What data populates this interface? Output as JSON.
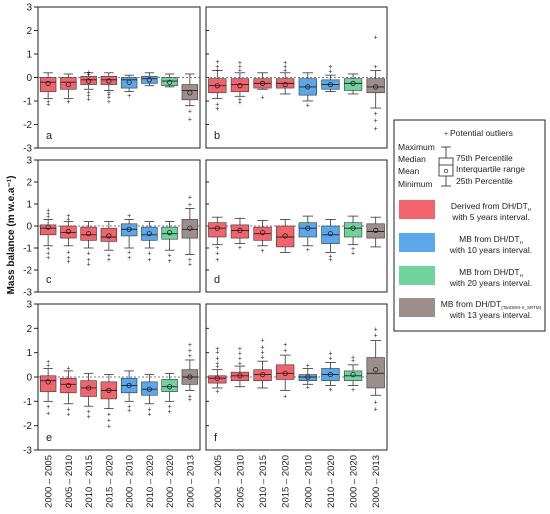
{
  "chart_data": {
    "type": "boxplot",
    "ylabel": "Mass balance (m w.e.a⁻¹)",
    "ylim": [
      -3,
      3
    ],
    "yticks": [
      -3,
      -2,
      -1,
      0,
      1,
      2,
      3
    ],
    "categories": [
      "2000 – 2005",
      "2005 – 2010",
      "2010 – 2015",
      "2015 – 2020",
      "2000 – 2010",
      "2010 – 2020",
      "2000 – 2020",
      "2000 – 2013"
    ],
    "category_group": [
      "5yr",
      "5yr",
      "5yr",
      "5yr",
      "10yr",
      "10yr",
      "20yr",
      "13yr"
    ],
    "colors": {
      "5yr": "#f2636b",
      "10yr": "#5aa7ec",
      "20yr": "#6fd39c",
      "13yr": "#9c8f8b"
    },
    "panels": [
      {
        "label": "a",
        "boxes": [
          {
            "min": -0.9,
            "q1": -0.6,
            "median": -0.2,
            "mean": -0.25,
            "q3": 0.0,
            "max": 0.2,
            "outliers": [
              -1.0,
              -1.1
            ]
          },
          {
            "min": -0.9,
            "q1": -0.5,
            "median": -0.2,
            "mean": -0.3,
            "q3": 0.0,
            "max": 0.15,
            "outliers": [
              -1.0
            ]
          },
          {
            "min": -0.5,
            "q1": -0.3,
            "median": -0.1,
            "mean": -0.15,
            "q3": 0.05,
            "max": 0.2,
            "outliers": [
              -0.6,
              -0.75,
              -0.9,
              0.15,
              0.25
            ]
          },
          {
            "min": -0.55,
            "q1": -0.3,
            "median": -0.1,
            "mean": -0.15,
            "q3": 0.05,
            "max": 0.2,
            "outliers": [
              -0.6,
              -0.7,
              -0.8,
              -1.0
            ]
          },
          {
            "min": -0.6,
            "q1": -0.45,
            "median": -0.1,
            "mean": -0.2,
            "q3": 0.0,
            "max": 0.1,
            "outliers": [
              -0.75
            ]
          },
          {
            "min": -0.35,
            "q1": -0.25,
            "median": -0.05,
            "mean": -0.1,
            "q3": 0.05,
            "max": 0.2,
            "outliers": []
          },
          {
            "min": -0.4,
            "q1": -0.35,
            "median": -0.15,
            "mean": -0.2,
            "q3": 0.0,
            "max": 0.15,
            "outliers": []
          },
          {
            "min": -1.2,
            "q1": -0.95,
            "median": -0.55,
            "mean": -0.65,
            "q3": -0.3,
            "max": 0.15,
            "outliers": [
              -1.4,
              -1.75
            ]
          }
        ]
      },
      {
        "label": "b",
        "boxes": [
          {
            "min": -0.9,
            "q1": -0.65,
            "median": -0.35,
            "mean": -0.35,
            "q3": -0.05,
            "max": 0.3,
            "outliers": [
              -1.1,
              -1.3,
              0.35,
              0.5,
              0.7
            ]
          },
          {
            "min": -0.8,
            "q1": -0.6,
            "median": -0.3,
            "mean": -0.35,
            "q3": -0.05,
            "max": 0.2,
            "outliers": [
              -0.9,
              -1.05,
              0.35,
              0.5,
              0.65
            ]
          },
          {
            "min": -0.5,
            "q1": -0.45,
            "median": -0.25,
            "mean": -0.25,
            "q3": -0.05,
            "max": 0.2,
            "outliers": [
              -0.8
            ]
          },
          {
            "min": -0.7,
            "q1": -0.45,
            "median": -0.25,
            "mean": -0.3,
            "q3": -0.05,
            "max": 0.2,
            "outliers": [
              0.35,
              0.5,
              0.65
            ]
          },
          {
            "min": -1.0,
            "q1": -0.75,
            "median": -0.4,
            "mean": -0.4,
            "q3": -0.05,
            "max": 0.2,
            "outliers": [
              -1.15
            ]
          },
          {
            "min": -0.6,
            "q1": -0.5,
            "median": -0.3,
            "mean": -0.3,
            "q3": -0.1,
            "max": 0.1,
            "outliers": [
              0.3,
              0.5
            ]
          },
          {
            "min": -0.7,
            "q1": -0.55,
            "median": -0.25,
            "mean": -0.25,
            "q3": -0.05,
            "max": 0.15,
            "outliers": []
          },
          {
            "min": -1.3,
            "q1": -0.65,
            "median": -0.4,
            "mean": -0.4,
            "q3": -0.05,
            "max": 0.3,
            "outliers": [
              -1.5,
              -1.8,
              -2.15,
              0.5,
              1.75
            ]
          }
        ]
      },
      {
        "label": "c",
        "boxes": [
          {
            "min": -0.9,
            "q1": -0.4,
            "median": -0.1,
            "mean": -0.05,
            "q3": 0.05,
            "max": 0.3,
            "outliers": [
              -1.0,
              -1.2,
              -1.4,
              0.45,
              0.6,
              0.75
            ]
          },
          {
            "min": -0.9,
            "q1": -0.55,
            "median": -0.3,
            "mean": -0.25,
            "q3": 0.0,
            "max": 0.2,
            "outliers": [
              -1.15,
              -1.4,
              -1.6,
              0.35,
              0.5
            ]
          },
          {
            "min": -1.0,
            "q1": -0.65,
            "median": -0.4,
            "mean": -0.35,
            "q3": -0.05,
            "max": 0.2,
            "outliers": [
              -1.2,
              -1.5,
              -1.7
            ]
          },
          {
            "min": -1.1,
            "q1": -0.7,
            "median": -0.5,
            "mean": -0.45,
            "q3": -0.1,
            "max": 0.2,
            "outliers": [
              -1.3,
              -1.5
            ]
          },
          {
            "min": -1.0,
            "q1": -0.45,
            "median": -0.15,
            "mean": -0.15,
            "q3": 0.1,
            "max": 0.3,
            "outliers": [
              -1.15,
              -1.4,
              0.5
            ]
          },
          {
            "min": -1.0,
            "q1": -0.65,
            "median": -0.4,
            "mean": -0.35,
            "q3": -0.05,
            "max": 0.2,
            "outliers": [
              -1.2,
              -1.5
            ]
          },
          {
            "min": -1.1,
            "q1": -0.6,
            "median": -0.35,
            "mean": -0.3,
            "q3": -0.05,
            "max": 0.2,
            "outliers": [
              -1.3,
              -1.55
            ]
          },
          {
            "min": -1.3,
            "q1": -0.55,
            "median": -0.15,
            "mean": -0.1,
            "q3": 0.3,
            "max": 0.8,
            "outliers": [
              -1.5,
              -1.7,
              1.0,
              1.35
            ]
          }
        ]
      },
      {
        "label": "d",
        "boxes": [
          {
            "min": -0.85,
            "q1": -0.5,
            "median": -0.1,
            "mean": -0.1,
            "q3": 0.15,
            "max": 0.4,
            "outliers": [
              -0.95,
              -1.2,
              -1.5
            ]
          },
          {
            "min": -0.8,
            "q1": -0.55,
            "median": -0.2,
            "mean": -0.2,
            "q3": 0.05,
            "max": 0.35,
            "outliers": [
              -0.95
            ]
          },
          {
            "min": -0.9,
            "q1": -0.65,
            "median": -0.35,
            "mean": -0.3,
            "q3": -0.05,
            "max": 0.25,
            "outliers": [
              -1.1
            ]
          },
          {
            "min": -1.2,
            "q1": -0.95,
            "median": -0.5,
            "mean": -0.45,
            "q3": 0.0,
            "max": 0.3,
            "outliers": []
          },
          {
            "min": -0.9,
            "q1": -0.5,
            "median": -0.1,
            "mean": -0.1,
            "q3": 0.15,
            "max": 0.45,
            "outliers": [
              -1.05
            ]
          },
          {
            "min": -1.2,
            "q1": -0.8,
            "median": -0.4,
            "mean": -0.35,
            "q3": 0.0,
            "max": 0.3,
            "outliers": [
              -1.35,
              -1.5
            ]
          },
          {
            "min": -0.85,
            "q1": -0.5,
            "median": -0.1,
            "mean": -0.1,
            "q3": 0.15,
            "max": 0.45,
            "outliers": [
              -1.0,
              -1.2
            ]
          },
          {
            "min": -0.95,
            "q1": -0.55,
            "median": -0.25,
            "mean": -0.2,
            "q3": 0.1,
            "max": 0.4,
            "outliers": []
          }
        ]
      },
      {
        "label": "e",
        "boxes": [
          {
            "min": -1.0,
            "q1": -0.6,
            "median": -0.15,
            "mean": -0.2,
            "q3": 0.05,
            "max": 0.35,
            "outliers": [
              -1.2,
              -1.45,
              0.5,
              0.65
            ]
          },
          {
            "min": -1.1,
            "q1": -0.65,
            "median": -0.3,
            "mean": -0.35,
            "q3": -0.05,
            "max": 0.25,
            "outliers": [
              -1.3,
              -1.5,
              0.4
            ]
          },
          {
            "min": -1.2,
            "q1": -0.8,
            "median": -0.45,
            "mean": -0.45,
            "q3": -0.15,
            "max": 0.15,
            "outliers": [
              -1.4,
              -1.6
            ]
          },
          {
            "min": -1.3,
            "q1": -0.9,
            "median": -0.55,
            "mean": -0.55,
            "q3": -0.2,
            "max": 0.1,
            "outliers": [
              -1.5,
              -1.75,
              -2.0
            ]
          },
          {
            "min": -1.0,
            "q1": -0.65,
            "median": -0.35,
            "mean": -0.35,
            "q3": -0.05,
            "max": 0.25,
            "outliers": [
              -1.2,
              -1.35
            ]
          },
          {
            "min": -1.1,
            "q1": -0.75,
            "median": -0.5,
            "mean": -0.5,
            "q3": -0.2,
            "max": 0.1,
            "outliers": [
              -1.3,
              -1.5
            ]
          },
          {
            "min": -1.0,
            "q1": -0.6,
            "median": -0.4,
            "mean": -0.4,
            "q3": -0.1,
            "max": 0.15,
            "outliers": [
              -1.2,
              -1.4
            ]
          },
          {
            "min": -0.55,
            "q1": -0.3,
            "median": 0.0,
            "mean": 0.0,
            "q3": 0.3,
            "max": 0.7,
            "outliers": [
              -0.75,
              -0.9,
              0.9,
              1.1,
              1.35
            ]
          }
        ]
      },
      {
        "label": "f",
        "boxes": [
          {
            "min": -0.45,
            "q1": -0.25,
            "median": -0.05,
            "mean": -0.05,
            "q3": 0.05,
            "max": 0.3,
            "outliers": [
              -0.55,
              0.45,
              0.6,
              0.8,
              1.05,
              1.2
            ]
          },
          {
            "min": -0.4,
            "q1": -0.15,
            "median": 0.05,
            "mean": 0.05,
            "q3": 0.2,
            "max": 0.45,
            "outliers": [
              0.6,
              0.8,
              1.0,
              1.2
            ]
          },
          {
            "min": -0.45,
            "q1": -0.15,
            "median": 0.1,
            "mean": 0.1,
            "q3": 0.3,
            "max": 0.65,
            "outliers": [
              0.85,
              1.05,
              1.25,
              1.55
            ]
          },
          {
            "min": -0.55,
            "q1": -0.1,
            "median": 0.15,
            "mean": 0.15,
            "q3": 0.5,
            "max": 0.9,
            "outliers": [
              1.1,
              1.35,
              -0.75
            ]
          },
          {
            "min": -0.3,
            "q1": -0.15,
            "median": 0.0,
            "mean": 0.0,
            "q3": 0.1,
            "max": 0.35,
            "outliers": [
              -0.4,
              0.5
            ]
          },
          {
            "min": -0.35,
            "q1": -0.15,
            "median": 0.1,
            "mean": 0.1,
            "q3": 0.35,
            "max": 0.6,
            "outliers": [
              -0.5,
              0.8,
              1.0
            ]
          },
          {
            "min": -0.35,
            "q1": -0.15,
            "median": 0.05,
            "mean": 0.1,
            "q3": 0.25,
            "max": 0.5,
            "outliers": [
              -0.5,
              0.7,
              0.85
            ]
          },
          {
            "min": -0.75,
            "q1": -0.45,
            "median": 0.15,
            "mean": 0.3,
            "q3": 0.8,
            "max": 1.5,
            "outliers": [
              -1.0,
              -1.3,
              1.75,
              2.0
            ]
          }
        ]
      }
    ],
    "legend": {
      "position": "right",
      "key_title": "Potential outliers",
      "key_left_labels": [
        "Maximum",
        "Median",
        "Mean",
        "Minimum"
      ],
      "key_right_labels": [
        "75th Percentile",
        "Interquartile range",
        "25th Percentile"
      ],
      "entries": [
        {
          "group": "5yr",
          "line1": "Derived from DH/DT",
          "line1_sub": "H",
          "line2": "with 5 years interval."
        },
        {
          "group": "10yr",
          "line1": "MB from DH/DT",
          "line1_sub": "H",
          "line2": "with 10 years interval."
        },
        {
          "group": "20yr",
          "line1": "MB from DH/DT",
          "line1_sub": "H",
          "line2": "with 20 years interval."
        },
        {
          "group": "13yr",
          "line1": "MB from DH/DT",
          "line1_sub": "(TanDEM-X_SRTM)",
          "line2": "with 13 years interval."
        }
      ]
    }
  }
}
